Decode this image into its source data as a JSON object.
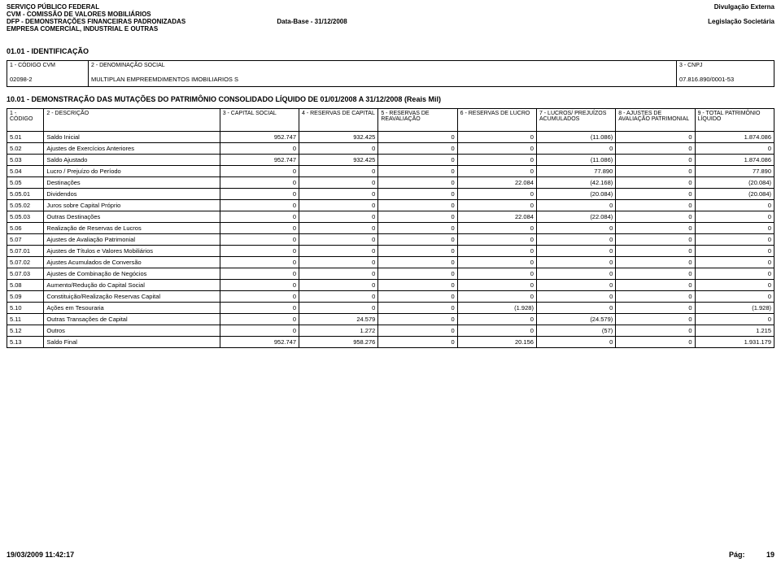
{
  "header": {
    "l1": "SERVIÇO PÚBLICO FEDERAL",
    "l2": "CVM - COMISSÃO DE VALORES MOBILIÁRIOS",
    "l3": "DFP - DEMONSTRAÇÕES FINANCEIRAS PADRONIZADAS",
    "l4": "EMPRESA COMERCIAL, INDUSTRIAL E OUTRAS",
    "center": "Data-Base - 31/12/2008",
    "r1": "Divulgação Externa",
    "r2": "Legislação Societária"
  },
  "ident": {
    "title": "01.01 - IDENTIFICAÇÃO",
    "h1": "1 - CÓDIGO CVM",
    "h2": "2 - DENOMINAÇÃO SOCIAL",
    "h3": "3 - CNPJ",
    "v1": "02098-2",
    "v2": "MULTIPLAN EMPREEMDIMENTOS IMOBILIARIOS S",
    "v3": "07.816.890/0001-53"
  },
  "section2": {
    "title": "10.01 - DEMONSTRAÇÃO DAS MUTAÇÕES DO PATRIMÔNIO CONSOLIDADO LÍQUIDO DE 01/01/2008 A 31/12/2008 (Reais Mil)",
    "cols": {
      "c0": "1 - CÓDIGO",
      "c1": "2 - DESCRIÇÃO",
      "c2": "3 - CAPITAL SOCIAL",
      "c3": "4 - RESERVAS DE CAPITAL",
      "c4": "5 - RESERVAS DE REAVALIAÇÃO",
      "c5": "6 - RESERVAS DE LUCRO",
      "c6": "7 - LUCROS/ PREJUÍZOS ACUMULADOS",
      "c7": "8 - AJUSTES DE AVALIAÇÃO PATRIMONIAL",
      "c8": "9 - TOTAL PATRIMÔNIO LÍQUIDO"
    },
    "rows": [
      {
        "code": "5.01",
        "desc": "Saldo Inicial",
        "v": [
          "952.747",
          "932.425",
          "0",
          "0",
          "(11.086)",
          "0",
          "1.874.086"
        ]
      },
      {
        "code": "5.02",
        "desc": "Ajustes de Exercícios Anteriores",
        "v": [
          "0",
          "0",
          "0",
          "0",
          "0",
          "0",
          "0"
        ]
      },
      {
        "code": "5.03",
        "desc": "Saldo Ajustado",
        "v": [
          "952.747",
          "932.425",
          "0",
          "0",
          "(11.086)",
          "0",
          "1.874.086"
        ]
      },
      {
        "code": "5.04",
        "desc": "Lucro / Prejuízo do Período",
        "v": [
          "0",
          "0",
          "0",
          "0",
          "77.890",
          "0",
          "77.890"
        ]
      },
      {
        "code": "5.05",
        "desc": "Destinações",
        "v": [
          "0",
          "0",
          "0",
          "22.084",
          "(42.168)",
          "0",
          "(20.084)"
        ]
      },
      {
        "code": "5.05.01",
        "desc": "Dividendos",
        "v": [
          "0",
          "0",
          "0",
          "0",
          "(20.084)",
          "0",
          "(20.084)"
        ]
      },
      {
        "code": "5.05.02",
        "desc": "Juros sobre Capital Próprio",
        "v": [
          "0",
          "0",
          "0",
          "0",
          "0",
          "0",
          "0"
        ]
      },
      {
        "code": "5.05.03",
        "desc": "Outras Destinações",
        "v": [
          "0",
          "0",
          "0",
          "22.084",
          "(22.084)",
          "0",
          "0"
        ]
      },
      {
        "code": "5.06",
        "desc": "Realização de Reservas de Lucros",
        "v": [
          "0",
          "0",
          "0",
          "0",
          "0",
          "0",
          "0"
        ]
      },
      {
        "code": "5.07",
        "desc": "Ajustes de Avaliação Patrimonial",
        "v": [
          "0",
          "0",
          "0",
          "0",
          "0",
          "0",
          "0"
        ]
      },
      {
        "code": "5.07.01",
        "desc": "Ajustes de Títulos e Valores Mobiliários",
        "v": [
          "0",
          "0",
          "0",
          "0",
          "0",
          "0",
          "0"
        ]
      },
      {
        "code": "5.07.02",
        "desc": "Ajustes Acumulados de Conversão",
        "v": [
          "0",
          "0",
          "0",
          "0",
          "0",
          "0",
          "0"
        ]
      },
      {
        "code": "5.07.03",
        "desc": "Ajustes de Combinação de Negócios",
        "v": [
          "0",
          "0",
          "0",
          "0",
          "0",
          "0",
          "0"
        ]
      },
      {
        "code": "5.08",
        "desc": "Aumento/Redução do Capital Social",
        "v": [
          "0",
          "0",
          "0",
          "0",
          "0",
          "0",
          "0"
        ]
      },
      {
        "code": "5.09",
        "desc": "Constituição/Realização Reservas Capital",
        "v": [
          "0",
          "0",
          "0",
          "0",
          "0",
          "0",
          "0"
        ]
      },
      {
        "code": "5.10",
        "desc": "Ações em Tesouraria",
        "v": [
          "0",
          "0",
          "0",
          "(1.928)",
          "0",
          "0",
          "(1.928)"
        ]
      },
      {
        "code": "5.11",
        "desc": "Outras Transações de Capital",
        "v": [
          "0",
          "24.579",
          "0",
          "0",
          "(24.579)",
          "0",
          "0"
        ]
      },
      {
        "code": "5.12",
        "desc": "Outros",
        "v": [
          "0",
          "1.272",
          "0",
          "0",
          "(57)",
          "0",
          "1.215"
        ]
      },
      {
        "code": "5.13",
        "desc": "Saldo Final",
        "v": [
          "952.747",
          "958.276",
          "0",
          "20.156",
          "0",
          "0",
          "1.931.179"
        ]
      }
    ]
  },
  "footer": {
    "timestamp": "19/03/2009 11:42:17",
    "page_label": "Pág:",
    "page_num": "19"
  }
}
